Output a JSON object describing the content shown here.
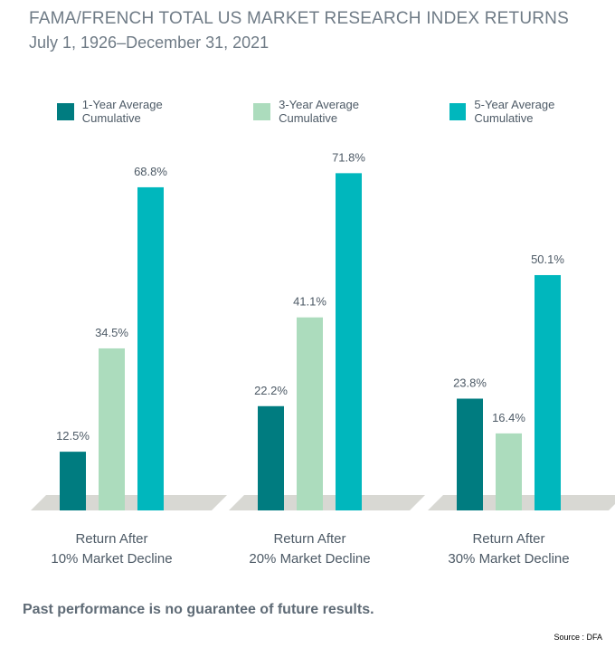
{
  "colors": {
    "one_year": "#007c80",
    "three_year": "#acdcbd",
    "five_year": "#00b7bd",
    "floor": "#d8d8d3",
    "text": "#4d5a66"
  },
  "chart_data": {
    "type": "bar",
    "title": "FAMA/FRENCH TOTAL US MARKET RESEARCH INDEX RETURNS",
    "subtitle": "July 1, 1926–December 31, 2021",
    "categories": [
      [
        "Return After",
        "10% Market Decline"
      ],
      [
        "Return After",
        "20% Market Decline"
      ],
      [
        "Return After",
        "30% Market Decline"
      ]
    ],
    "series": [
      {
        "name": "1-Year Average Cumulative",
        "values": [
          12.5,
          22.2,
          23.8
        ],
        "labels": [
          "12.5%",
          "22.2%",
          "23.8%"
        ]
      },
      {
        "name": "3-Year Average Cumulative",
        "values": [
          34.5,
          41.1,
          16.4
        ],
        "labels": [
          "34.5%",
          "41.1%",
          "16.4%"
        ]
      },
      {
        "name": "5-Year Average Cumulative",
        "values": [
          68.8,
          71.8,
          50.1
        ],
        "labels": [
          "68.8%",
          "71.8%",
          "50.1%"
        ]
      }
    ],
    "ylim": [
      0,
      80
    ],
    "grid": false,
    "legend": "top"
  },
  "footnote": "Past performance is no guarantee of future results.",
  "source": "Source : DFA"
}
